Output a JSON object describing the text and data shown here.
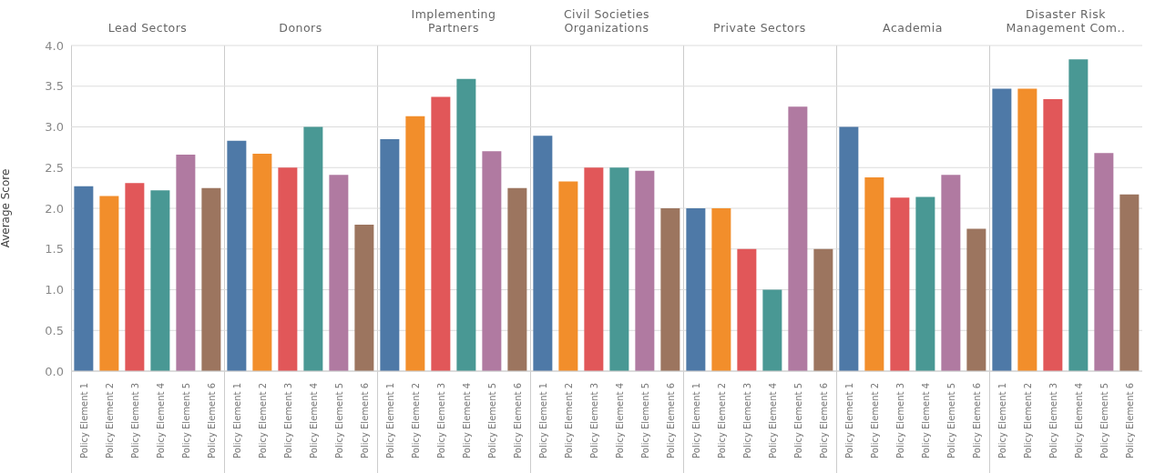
{
  "chart_data": [
    {
      "type": "bar",
      "title": "Lead Sectors",
      "ylabel": "Average Score",
      "categories": [
        "Policy Element 1",
        "Policy Element 2",
        "Policy Element 3",
        "Policy Element 4",
        "Policy Element 5",
        "Policy Element 6"
      ],
      "values": [
        2.27,
        2.15,
        2.31,
        2.22,
        2.66,
        2.25
      ],
      "colors": [
        "#4e79a7",
        "#f28e2b",
        "#e15759",
        "#499894",
        "#b07aa1",
        "#9c755f"
      ],
      "ylim": [
        0,
        4
      ],
      "yticks": [
        {
          "value": 0,
          "label": "0.0"
        },
        {
          "value": 0.5,
          "label": "0.5"
        },
        {
          "value": 1,
          "label": "1.0"
        },
        {
          "value": 1.5,
          "label": "1.5"
        },
        {
          "value": 2,
          "label": "2.0"
        },
        {
          "value": 2.5,
          "label": "2.5"
        },
        {
          "value": 3,
          "label": "3.0"
        },
        {
          "value": 3.5,
          "label": "3.5"
        },
        {
          "value": 4,
          "label": "4.0"
        }
      ],
      "grid": "y"
    },
    {
      "type": "bar",
      "title": "Donors",
      "categories": [
        "Policy Element 1",
        "Policy Element 2",
        "Policy Element 3",
        "Policy Element 4",
        "Policy Element 5",
        "Policy Element 6"
      ],
      "values": [
        2.83,
        2.67,
        2.5,
        3.0,
        2.41,
        1.8
      ],
      "colors": [
        "#4e79a7",
        "#f28e2b",
        "#e15759",
        "#499894",
        "#b07aa1",
        "#9c755f"
      ],
      "ylim": [
        0,
        4
      ],
      "yticks": [
        0,
        0.5,
        1,
        1.5,
        2,
        2.5,
        3,
        3.5,
        4
      ],
      "grid": "y",
      "tick_labels": "x"
    },
    {
      "type": "bar",
      "title": "Implementing Partners",
      "categories": [
        "Policy Element 1",
        "Policy Element 2",
        "Policy Element 3",
        "Policy Element 4",
        "Policy Element 5",
        "Policy Element 6"
      ],
      "values": [
        2.85,
        3.13,
        3.37,
        3.59,
        2.7,
        2.25
      ],
      "colors": [
        "#4e79a7",
        "#f28e2b",
        "#e15759",
        "#499894",
        "#b07aa1",
        "#9c755f"
      ],
      "ylim": [
        0,
        4
      ],
      "yticks": [
        0,
        0.5,
        1,
        1.5,
        2,
        2.5,
        3,
        3.5,
        4
      ],
      "grid": "y",
      "tick_labels": "x"
    },
    {
      "type": "bar",
      "title": "Civil Societies Organizations",
      "categories": [
        "Policy Element 1",
        "Policy Element 2",
        "Policy Element 3",
        "Policy Element 4",
        "Policy Element 5",
        "Policy Element 6"
      ],
      "values": [
        2.89,
        2.33,
        2.5,
        2.5,
        2.46,
        2.0
      ],
      "colors": [
        "#4e79a7",
        "#f28e2b",
        "#e15759",
        "#499894",
        "#b07aa1",
        "#9c755f"
      ],
      "ylim": [
        0,
        4
      ],
      "yticks": [
        0,
        0.5,
        1,
        1.5,
        2,
        2.5,
        3,
        3.5,
        4
      ],
      "grid": "y",
      "tick_labels": "x"
    },
    {
      "type": "bar",
      "title": "Private Sectors",
      "categories": [
        "Policy Element 1",
        "Policy Element 2",
        "Policy Element 3",
        "Policy Element 4",
        "Policy Element 5",
        "Policy Element 6"
      ],
      "values": [
        2.0,
        2.0,
        1.5,
        1.0,
        3.25,
        1.5
      ],
      "colors": [
        "#4e79a7",
        "#f28e2b",
        "#e15759",
        "#499894",
        "#b07aa1",
        "#9c755f"
      ],
      "ylim": [
        0,
        4
      ],
      "yticks": [
        0,
        0.5,
        1,
        1.5,
        2,
        2.5,
        3,
        3.5,
        4
      ],
      "grid": "y",
      "tick_labels": "x"
    },
    {
      "type": "bar",
      "title": "Academia",
      "categories": [
        "Policy Element 1",
        "Policy Element 2",
        "Policy Element 3",
        "Policy Element 4",
        "Policy Element 5",
        "Policy Element 6"
      ],
      "values": [
        3.0,
        2.38,
        2.13,
        2.14,
        2.41,
        1.75
      ],
      "colors": [
        "#4e79a7",
        "#f28e2b",
        "#e15759",
        "#499894",
        "#b07aa1",
        "#9c755f"
      ],
      "ylim": [
        0,
        4
      ],
      "yticks": [
        0,
        0.5,
        1,
        1.5,
        2,
        2.5,
        3,
        3.5,
        4
      ],
      "grid": "y",
      "tick_labels": "x"
    },
    {
      "type": "bar",
      "title": "Disaster Risk Management Com..",
      "categories": [
        "Policy Element 1",
        "Policy Element 2",
        "Policy Element 3",
        "Policy Element 4",
        "Policy Element 5",
        "Policy Element 6"
      ],
      "values": [
        3.47,
        3.47,
        3.34,
        3.83,
        2.68,
        2.17
      ],
      "colors": [
        "#4e79a7",
        "#f28e2b",
        "#e15759",
        "#499894",
        "#b07aa1",
        "#9c755f"
      ],
      "ylim": [
        0,
        4
      ],
      "yticks": [
        0,
        0.5,
        1,
        1.5,
        2,
        2.5,
        3,
        3.5,
        4
      ],
      "grid": "y",
      "tick_labels": "x"
    }
  ]
}
